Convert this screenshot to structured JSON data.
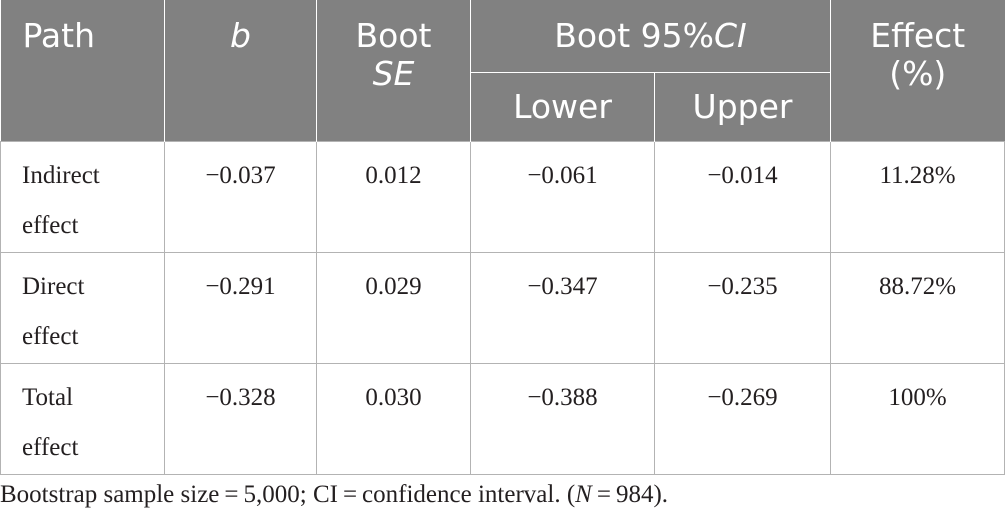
{
  "header": {
    "path": "Path",
    "b": "b",
    "boot_se_line1": "Boot",
    "boot_se_line2": "SE",
    "ci_prefix": "Boot 95%",
    "ci_italic": "CI",
    "lower": "Lower",
    "upper": "Upper",
    "effect_line1": "Effect",
    "effect_line2": "(%)"
  },
  "rows": [
    {
      "path_line1": "Indirect",
      "path_line2": "effect",
      "b": "−0.037",
      "se": "0.012",
      "lower": "−0.061",
      "upper": "−0.014",
      "effect": "11.28%"
    },
    {
      "path_line1": "Direct",
      "path_line2": "effect",
      "b": "−0.291",
      "se": "0.029",
      "lower": "−0.347",
      "upper": "−0.235",
      "effect": "88.72%"
    },
    {
      "path_line1": "Total",
      "path_line2": "effect",
      "b": "−0.328",
      "se": "0.030",
      "lower": "−0.388",
      "upper": "−0.269",
      "effect": "100%"
    }
  ],
  "note": {
    "prefix": "Bootstrap sample size = 5,000; CI = confidence interval. (",
    "n_italic": "N",
    "suffix": " = 984)."
  }
}
